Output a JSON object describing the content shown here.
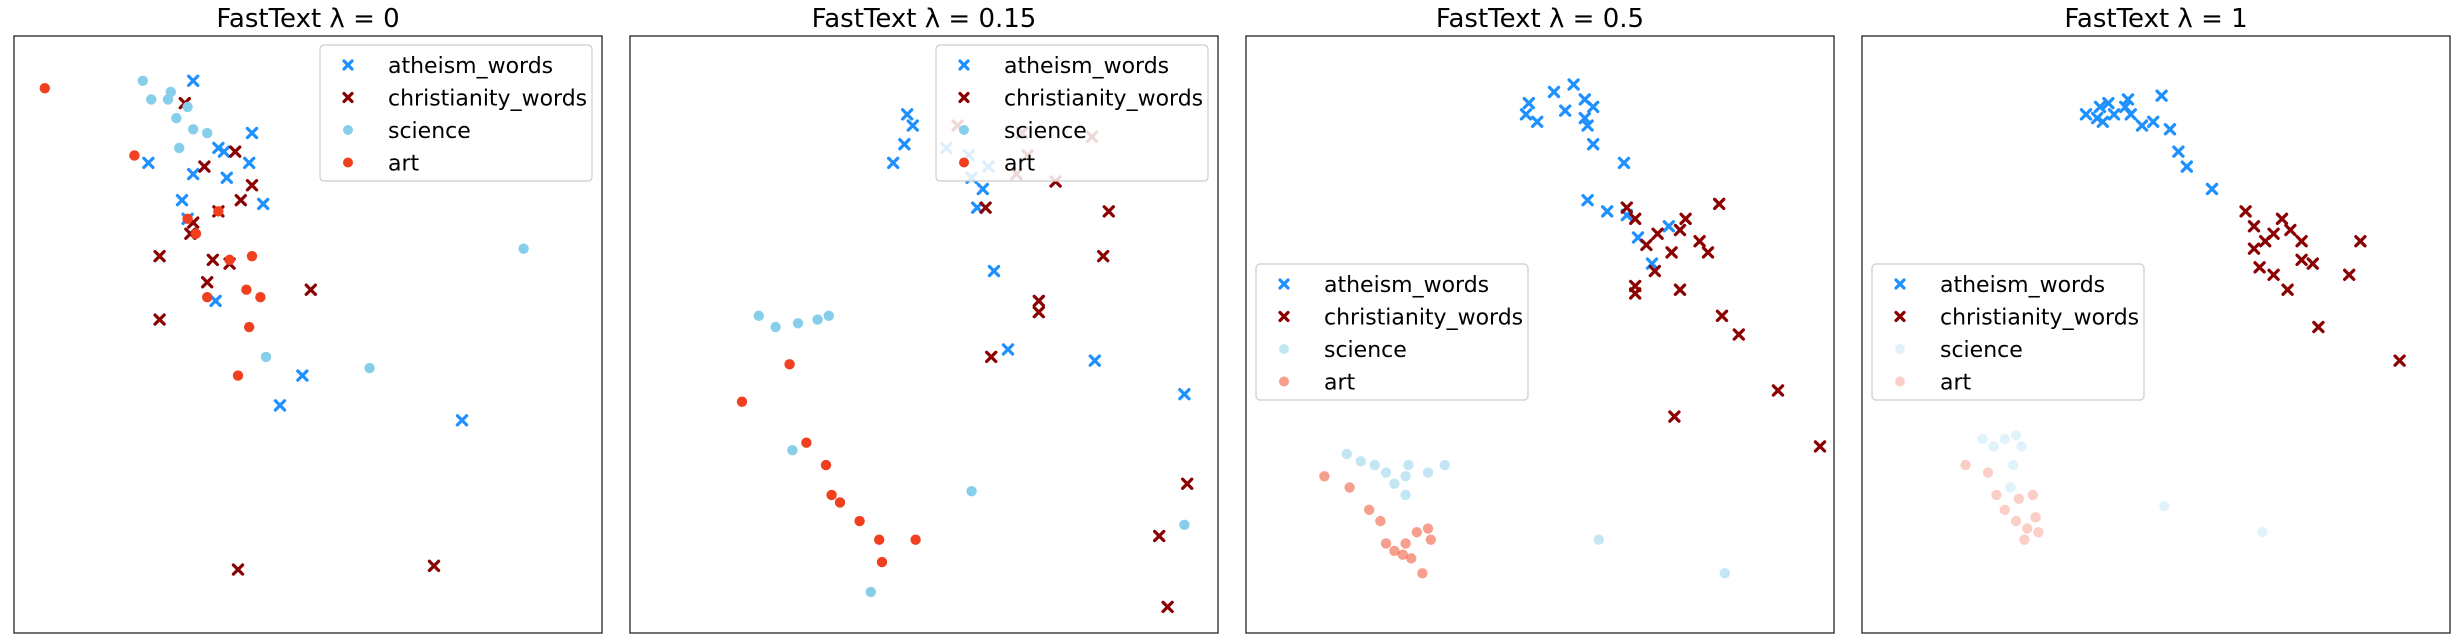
{
  "chart_data": [
    {
      "type": "scatter",
      "title": "FastText λ = 0",
      "legend_position": "upper-right",
      "series_alpha": [
        1,
        1
      ],
      "series": [
        {
          "name": "atheism_words",
          "marker": "x",
          "color": "#1e90ff",
          "points": [
            [
              -0.36,
              0.93
            ],
            [
              -0.15,
              0.79
            ],
            [
              -0.16,
              0.71
            ],
            [
              -0.27,
              0.75
            ],
            [
              -0.25,
              0.74
            ],
            [
              -0.24,
              0.67
            ],
            [
              -0.36,
              0.68
            ],
            [
              -0.4,
              0.61
            ],
            [
              -0.28,
              0.34
            ],
            [
              -0.11,
              0.6
            ],
            [
              -0.38,
              0.56
            ],
            [
              0.03,
              0.14
            ],
            [
              -0.52,
              0.71
            ],
            [
              -0.05,
              0.06
            ],
            [
              0.6,
              0.02
            ]
          ]
        },
        {
          "name": "christianity_words",
          "marker": "x",
          "color": "#8b0000",
          "points": [
            [
              -0.39,
              0.87
            ],
            [
              -0.15,
              0.65
            ],
            [
              -0.21,
              0.74
            ],
            [
              -0.32,
              0.7
            ],
            [
              -0.19,
              0.61
            ],
            [
              -0.27,
              0.58
            ],
            [
              -0.29,
              0.45
            ],
            [
              -0.23,
              0.44
            ],
            [
              -0.48,
              0.46
            ],
            [
              -0.48,
              0.29
            ],
            [
              -0.31,
              0.39
            ],
            [
              -0.36,
              0.55
            ],
            [
              -0.37,
              0.52
            ],
            [
              0.06,
              0.37
            ],
            [
              -0.2,
              -0.38
            ],
            [
              0.5,
              -0.37
            ]
          ]
        },
        {
          "name": "science",
          "marker": "o",
          "color": "#87ceeb",
          "points": [
            [
              -0.45,
              0.88
            ],
            [
              -0.54,
              0.93
            ],
            [
              -0.51,
              0.88
            ],
            [
              -0.44,
              0.9
            ],
            [
              -0.38,
              0.86
            ],
            [
              -0.42,
              0.83
            ],
            [
              0.82,
              0.48
            ],
            [
              -0.41,
              0.75
            ],
            [
              -0.36,
              0.8
            ],
            [
              -0.31,
              0.79
            ],
            [
              0.27,
              0.16
            ],
            [
              -0.1,
              0.19
            ]
          ]
        },
        {
          "name": "art",
          "marker": "o",
          "color": "#f04020",
          "points": [
            [
              -0.89,
              0.91
            ],
            [
              -0.57,
              0.73
            ],
            [
              -0.38,
              0.56
            ],
            [
              -0.35,
              0.52
            ],
            [
              -0.23,
              0.45
            ],
            [
              -0.17,
              0.37
            ],
            [
              -0.15,
              0.46
            ],
            [
              -0.12,
              0.35
            ],
            [
              -0.16,
              0.27
            ],
            [
              -0.31,
              0.35
            ],
            [
              -0.27,
              0.58
            ],
            [
              -0.2,
              0.14
            ]
          ]
        }
      ]
    },
    {
      "type": "scatter",
      "title": "FastText λ = 0.15",
      "legend_position": "upper-right",
      "series_alpha": [
        1,
        1
      ],
      "series": [
        {
          "name": "atheism_words",
          "marker": "x",
          "color": "#1e90ff",
          "points": [
            [
              0.21,
              0.73
            ],
            [
              0.13,
              0.75
            ],
            [
              -0.02,
              0.76
            ],
            [
              0.01,
              0.81
            ],
            [
              -0.01,
              0.84
            ],
            [
              0.22,
              0.67
            ],
            [
              0.28,
              0.7
            ],
            [
              0.26,
              0.64
            ],
            [
              -0.06,
              0.71
            ],
            [
              0.24,
              0.59
            ],
            [
              0.3,
              0.42
            ],
            [
              0.35,
              0.21
            ],
            [
              0.66,
              0.18
            ],
            [
              0.98,
              0.09
            ]
          ]
        },
        {
          "name": "christianity_words",
          "marker": "x",
          "color": "#8b0000",
          "points": [
            [
              0.17,
              0.81
            ],
            [
              0.27,
              0.59
            ],
            [
              0.38,
              0.68
            ],
            [
              0.4,
              0.79
            ],
            [
              0.52,
              0.66
            ],
            [
              0.69,
              0.46
            ],
            [
              0.71,
              0.58
            ],
            [
              0.42,
              0.73
            ],
            [
              0.65,
              0.78
            ],
            [
              0.46,
              0.31
            ],
            [
              0.46,
              0.34
            ],
            [
              0.29,
              0.19
            ],
            [
              0.89,
              -0.29
            ],
            [
              0.92,
              -0.48
            ],
            [
              0.99,
              -0.15
            ]
          ]
        },
        {
          "name": "science",
          "marker": "o",
          "color": "#87ceeb",
          "points": [
            [
              -0.54,
              0.3
            ],
            [
              -0.48,
              0.27
            ],
            [
              -0.4,
              0.28
            ],
            [
              -0.33,
              0.29
            ],
            [
              -0.29,
              0.3
            ],
            [
              -0.42,
              -0.06
            ],
            [
              -0.14,
              -0.44
            ],
            [
              0.22,
              -0.17
            ],
            [
              0.98,
              -0.26
            ]
          ]
        },
        {
          "name": "art",
          "marker": "o",
          "color": "#f04020",
          "points": [
            [
              -0.6,
              0.07
            ],
            [
              -0.43,
              0.17
            ],
            [
              -0.37,
              -0.04
            ],
            [
              -0.3,
              -0.1
            ],
            [
              -0.28,
              -0.18
            ],
            [
              -0.25,
              -0.2
            ],
            [
              -0.18,
              -0.25
            ],
            [
              -0.11,
              -0.3
            ],
            [
              -0.1,
              -0.36
            ],
            [
              0.02,
              -0.3
            ]
          ]
        }
      ]
    },
    {
      "type": "scatter",
      "title": "FastText λ = 0.5",
      "legend_position": "center-left",
      "series_alpha": [
        1,
        0.5
      ],
      "series": [
        {
          "name": "atheism_words",
          "marker": "x",
          "color": "#1e90ff",
          "points": [
            [
              0.01,
              0.87
            ],
            [
              0.0,
              0.84
            ],
            [
              0.04,
              0.82
            ],
            [
              0.1,
              0.9
            ],
            [
              0.14,
              0.85
            ],
            [
              0.17,
              0.92
            ],
            [
              0.21,
              0.88
            ],
            [
              0.21,
              0.83
            ],
            [
              0.24,
              0.76
            ],
            [
              0.35,
              0.71
            ],
            [
              0.29,
              0.58
            ],
            [
              0.36,
              0.57
            ],
            [
              0.51,
              0.54
            ],
            [
              0.22,
              0.61
            ],
            [
              0.4,
              0.51
            ],
            [
              0.45,
              0.44
            ],
            [
              0.24,
              0.86
            ],
            [
              0.22,
              0.81
            ]
          ]
        },
        {
          "name": "christianity_words",
          "marker": "x",
          "color": "#8b0000",
          "points": [
            [
              0.36,
              0.59
            ],
            [
              0.39,
              0.56
            ],
            [
              0.43,
              0.49
            ],
            [
              0.47,
              0.52
            ],
            [
              0.52,
              0.47
            ],
            [
              0.55,
              0.53
            ],
            [
              0.57,
              0.56
            ],
            [
              0.62,
              0.5
            ],
            [
              0.65,
              0.47
            ],
            [
              0.69,
              0.6
            ],
            [
              0.55,
              0.37
            ],
            [
              0.46,
              0.42
            ],
            [
              0.39,
              0.38
            ],
            [
              0.39,
              0.36
            ],
            [
              0.7,
              0.3
            ],
            [
              0.76,
              0.25
            ],
            [
              0.9,
              0.1
            ],
            [
              0.53,
              0.03
            ],
            [
              1.05,
              -0.05
            ]
          ]
        },
        {
          "name": "science",
          "marker": "o",
          "color": "#87ceeb",
          "points": [
            [
              -0.64,
              -0.07
            ],
            [
              -0.59,
              -0.09
            ],
            [
              -0.54,
              -0.1
            ],
            [
              -0.5,
              -0.12
            ],
            [
              -0.47,
              -0.15
            ],
            [
              -0.43,
              -0.18
            ],
            [
              -0.43,
              -0.13
            ],
            [
              -0.42,
              -0.1
            ],
            [
              -0.35,
              -0.12
            ],
            [
              -0.29,
              -0.1
            ],
            [
              0.26,
              -0.3
            ],
            [
              0.71,
              -0.39
            ]
          ]
        },
        {
          "name": "art",
          "marker": "o",
          "color": "#f04020",
          "points": [
            [
              -0.72,
              -0.13
            ],
            [
              -0.63,
              -0.16
            ],
            [
              -0.56,
              -0.22
            ],
            [
              -0.52,
              -0.25
            ],
            [
              -0.5,
              -0.31
            ],
            [
              -0.47,
              -0.33
            ],
            [
              -0.44,
              -0.34
            ],
            [
              -0.43,
              -0.31
            ],
            [
              -0.41,
              -0.35
            ],
            [
              -0.39,
              -0.28
            ],
            [
              -0.37,
              -0.39
            ],
            [
              -0.35,
              -0.27
            ],
            [
              -0.34,
              -0.3
            ]
          ]
        }
      ]
    },
    {
      "type": "scatter",
      "title": "FastText λ = 1",
      "legend_position": "center-left",
      "series_alpha": [
        1,
        0.25
      ],
      "series": [
        {
          "name": "atheism_words",
          "marker": "x",
          "color": "#1e90ff",
          "points": [
            [
              -0.2,
              0.84
            ],
            [
              -0.15,
              0.86
            ],
            [
              -0.12,
              0.87
            ],
            [
              -0.06,
              0.86
            ],
            [
              -0.04,
              0.84
            ],
            [
              0.0,
              0.81
            ],
            [
              0.04,
              0.82
            ],
            [
              0.07,
              0.89
            ],
            [
              0.1,
              0.8
            ],
            [
              0.13,
              0.74
            ],
            [
              0.16,
              0.7
            ],
            [
              0.25,
              0.64
            ],
            [
              -0.14,
              0.82
            ],
            [
              -0.16,
              0.83
            ],
            [
              -0.1,
              0.84
            ],
            [
              -0.05,
              0.88
            ]
          ]
        },
        {
          "name": "christianity_words",
          "marker": "x",
          "color": "#8b0000",
          "points": [
            [
              0.37,
              0.58
            ],
            [
              0.4,
              0.54
            ],
            [
              0.44,
              0.5
            ],
            [
              0.47,
              0.52
            ],
            [
              0.5,
              0.56
            ],
            [
              0.53,
              0.53
            ],
            [
              0.57,
              0.5
            ],
            [
              0.61,
              0.44
            ],
            [
              0.4,
              0.48
            ],
            [
              0.42,
              0.43
            ],
            [
              0.47,
              0.41
            ],
            [
              0.52,
              0.37
            ],
            [
              0.57,
              0.45
            ],
            [
              0.74,
              0.41
            ],
            [
              0.63,
              0.27
            ],
            [
              0.78,
              0.5
            ],
            [
              0.92,
              0.18
            ]
          ]
        },
        {
          "name": "science",
          "marker": "o",
          "color": "#87ceeb",
          "points": [
            [
              -0.57,
              -0.03
            ],
            [
              -0.53,
              -0.05
            ],
            [
              -0.49,
              -0.03
            ],
            [
              -0.45,
              -0.02
            ],
            [
              -0.43,
              -0.05
            ],
            [
              -0.46,
              -0.1
            ],
            [
              -0.47,
              -0.16
            ],
            [
              0.08,
              -0.21
            ],
            [
              0.43,
              -0.28
            ]
          ]
        },
        {
          "name": "art",
          "marker": "o",
          "color": "#f04020",
          "points": [
            [
              -0.63,
              -0.1
            ],
            [
              -0.55,
              -0.12
            ],
            [
              -0.52,
              -0.18
            ],
            [
              -0.49,
              -0.22
            ],
            [
              -0.45,
              -0.25
            ],
            [
              -0.42,
              -0.3
            ],
            [
              -0.39,
              -0.18
            ],
            [
              -0.38,
              -0.24
            ],
            [
              -0.37,
              -0.28
            ],
            [
              -0.44,
              -0.19
            ],
            [
              -0.41,
              -0.27
            ]
          ]
        }
      ]
    }
  ]
}
